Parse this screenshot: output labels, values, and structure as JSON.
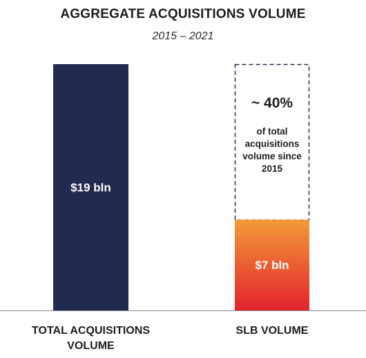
{
  "chart_data": {
    "type": "bar",
    "title": "AGGREGATE ACQUISITIONS VOLUME",
    "subtitle": "2015 – 2021",
    "categories": [
      "TOTAL ACQUISITIONS VOLUME",
      "SLB VOLUME"
    ],
    "category_label_lines": [
      [
        "TOTAL ACQUISITIONS",
        "VOLUME"
      ],
      [
        "SLB VOLUME"
      ]
    ],
    "values": [
      19,
      7
    ],
    "unit": "bln",
    "value_labels": [
      "$19 bln",
      "$7 bln"
    ],
    "ylim": [
      0,
      19
    ],
    "grid": false,
    "colors": {
      "total": "#232a4f",
      "slb_top": "#f29a38",
      "slb_bottom": "#e3232d",
      "baseline": "#888888",
      "outline": "#232a4f"
    },
    "annotation": {
      "headline": "~ 40%",
      "lines": [
        "of total",
        "acquisitions",
        "volume since",
        "2015"
      ],
      "reference_value": 19
    }
  }
}
